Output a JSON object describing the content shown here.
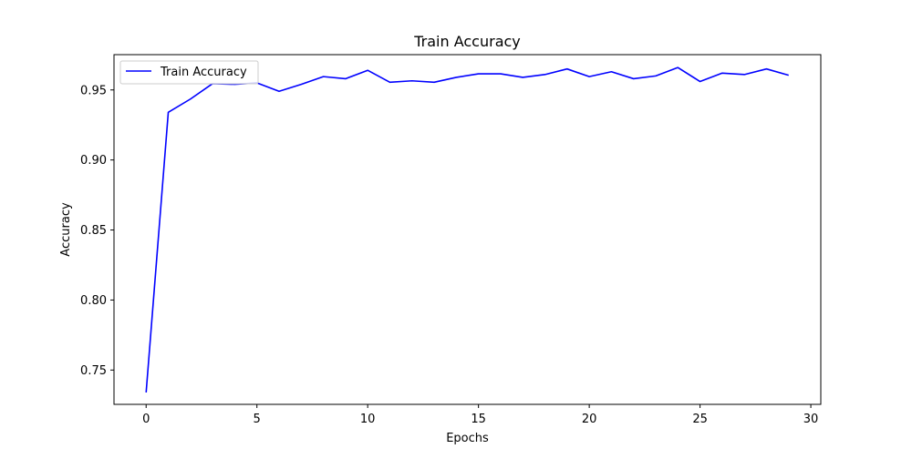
{
  "chart_data": {
    "type": "line",
    "title": "Train Accuracy",
    "xlabel": "Epochs",
    "ylabel": "Accuracy",
    "xlim": [
      -1.45,
      30.45
    ],
    "ylim": [
      0.7255,
      0.9752
    ],
    "xticks": [
      0,
      5,
      10,
      15,
      20,
      25,
      30
    ],
    "yticks": [
      0.75,
      0.8,
      0.85,
      0.9,
      0.95
    ],
    "xtick_labels": [
      "0",
      "5",
      "10",
      "15",
      "20",
      "25",
      "30"
    ],
    "ytick_labels": [
      "0.75",
      "0.80",
      "0.85",
      "0.90",
      "0.95"
    ],
    "grid": false,
    "legend": "upper-left",
    "series": [
      {
        "name": "Train Accuracy",
        "color": "#0000ff",
        "x": [
          0,
          1,
          2,
          3,
          4,
          5,
          6,
          7,
          8,
          9,
          10,
          11,
          12,
          13,
          14,
          15,
          16,
          17,
          18,
          19,
          20,
          21,
          22,
          23,
          24,
          25,
          26,
          27,
          28,
          29
        ],
        "y": [
          0.734,
          0.934,
          0.9435,
          0.9545,
          0.954,
          0.955,
          0.949,
          0.954,
          0.9595,
          0.958,
          0.964,
          0.9555,
          0.9565,
          0.9555,
          0.959,
          0.9615,
          0.9615,
          0.959,
          0.961,
          0.965,
          0.9595,
          0.963,
          0.958,
          0.96,
          0.966,
          0.956,
          0.962,
          0.961,
          0.965,
          0.9605
        ]
      }
    ]
  }
}
